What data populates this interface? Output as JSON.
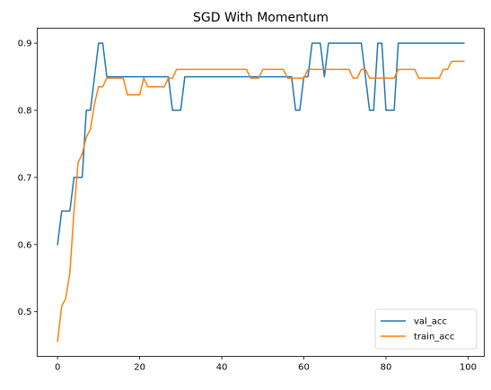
{
  "chart_data": {
    "type": "line",
    "title": "SGD With Momentum",
    "xlabel": "",
    "ylabel": "",
    "xlim": [
      -4.95,
      103.95
    ],
    "ylim": [
      0.4335,
      0.9222
    ],
    "xticks": [
      0,
      20,
      40,
      60,
      80,
      100
    ],
    "yticks": [
      0.5,
      0.6,
      0.7,
      0.8,
      0.9
    ],
    "grid": false,
    "legend_position": "lower-right",
    "series": [
      {
        "name": "val_acc",
        "color": "#1f77b4",
        "values": [
          0.6,
          0.65,
          0.65,
          0.65,
          0.7,
          0.7,
          0.7,
          0.8,
          0.8,
          0.85,
          0.9,
          0.9,
          0.85,
          0.85,
          0.85,
          0.85,
          0.85,
          0.85,
          0.85,
          0.85,
          0.85,
          0.85,
          0.85,
          0.85,
          0.85,
          0.85,
          0.85,
          0.85,
          0.8,
          0.8,
          0.8,
          0.85,
          0.85,
          0.85,
          0.85,
          0.85,
          0.85,
          0.85,
          0.85,
          0.85,
          0.85,
          0.85,
          0.85,
          0.85,
          0.85,
          0.85,
          0.85,
          0.85,
          0.85,
          0.85,
          0.85,
          0.85,
          0.85,
          0.85,
          0.85,
          0.85,
          0.85,
          0.85,
          0.8,
          0.8,
          0.85,
          0.85,
          0.9,
          0.9,
          0.9,
          0.85,
          0.9,
          0.9,
          0.9,
          0.9,
          0.9,
          0.9,
          0.9,
          0.9,
          0.9,
          0.85,
          0.8,
          0.8,
          0.9,
          0.9,
          0.8,
          0.8,
          0.8,
          0.9,
          0.9,
          0.9,
          0.9,
          0.9,
          0.9,
          0.9,
          0.9,
          0.9,
          0.9,
          0.9,
          0.9,
          0.9,
          0.9,
          0.9,
          0.9,
          0.9
        ]
      },
      {
        "name": "train_acc",
        "color": "#ff7f0e",
        "values": [
          0.456,
          0.508,
          0.52,
          0.558,
          0.65,
          0.722,
          0.735,
          0.76,
          0.772,
          0.81,
          0.835,
          0.835,
          0.848,
          0.848,
          0.848,
          0.848,
          0.848,
          0.823,
          0.823,
          0.823,
          0.823,
          0.848,
          0.835,
          0.835,
          0.835,
          0.835,
          0.835,
          0.848,
          0.848,
          0.861,
          0.861,
          0.861,
          0.861,
          0.861,
          0.861,
          0.861,
          0.861,
          0.861,
          0.861,
          0.861,
          0.861,
          0.861,
          0.861,
          0.861,
          0.861,
          0.861,
          0.861,
          0.848,
          0.848,
          0.848,
          0.861,
          0.861,
          0.861,
          0.861,
          0.861,
          0.861,
          0.848,
          0.848,
          0.848,
          0.848,
          0.848,
          0.861,
          0.861,
          0.861,
          0.861,
          0.861,
          0.861,
          0.861,
          0.861,
          0.861,
          0.861,
          0.861,
          0.848,
          0.848,
          0.861,
          0.861,
          0.848,
          0.848,
          0.848,
          0.848,
          0.848,
          0.848,
          0.848,
          0.861,
          0.861,
          0.861,
          0.861,
          0.861,
          0.848,
          0.848,
          0.848,
          0.848,
          0.848,
          0.848,
          0.861,
          0.861,
          0.873,
          0.873,
          0.873,
          0.873
        ]
      }
    ]
  }
}
